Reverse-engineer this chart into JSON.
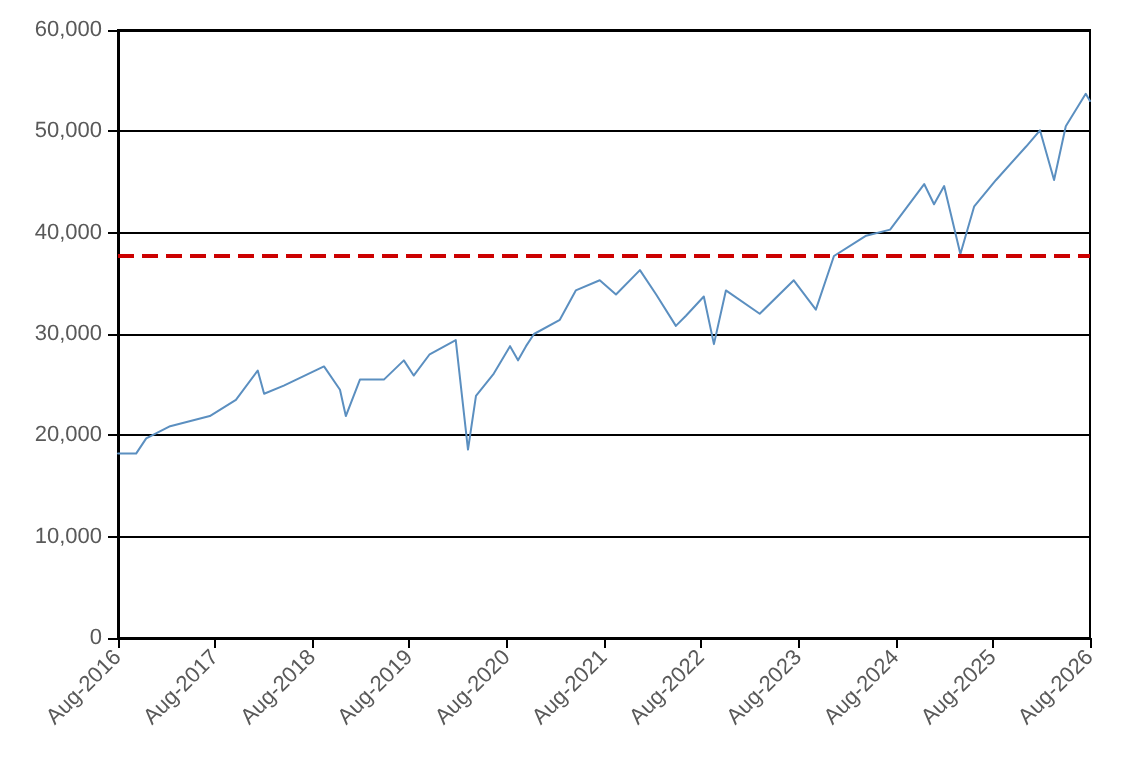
{
  "chart_data": {
    "type": "line",
    "x": [
      "2016-08-01",
      "2016-10-08",
      "2016-11-15",
      "2017-02-13",
      "2017-07-12",
      "2017-10-18",
      "2018-01-08",
      "2018-02-01",
      "2018-04-16",
      "2018-09-14",
      "2018-11-13",
      "2018-12-05",
      "2019-01-27",
      "2019-04-27",
      "2019-07-11",
      "2019-08-17",
      "2019-10-16",
      "2020-01-22",
      "2020-03-08",
      "2020-04-07",
      "2020-06-13",
      "2020-08-13",
      "2020-09-12",
      "2020-10-12",
      "2020-11-11",
      "2021-02-16",
      "2021-04-17",
      "2021-07-16",
      "2021-09-15",
      "2021-12-14",
      "2022-02-13",
      "2022-04-28",
      "2022-06-05",
      "2022-08-11",
      "2022-09-18",
      "2022-11-02",
      "2023-03-09",
      "2023-07-15",
      "2023-10-06",
      "2023-12-13",
      "2024-04-12",
      "2024-07-11",
      "2024-11-16",
      "2024-12-23",
      "2025-01-30",
      "2025-04-01",
      "2025-05-23",
      "2025-08-13",
      "2025-12-04",
      "2026-01-25",
      "2026-03-19",
      "2026-05-02",
      "2026-07-16",
      "2026-08-01"
    ],
    "series": [
      {
        "color": "#5b8fc0",
        "values": [
          18200,
          18200,
          19700,
          20900,
          21900,
          23500,
          26400,
          24100,
          24900,
          26800,
          24500,
          21900,
          25500,
          25500,
          27400,
          25900,
          28000,
          29400,
          18600,
          23900,
          26100,
          28800,
          27400,
          28800,
          30000,
          31400,
          34300,
          35300,
          33900,
          36300,
          33900,
          30800,
          31800,
          33700,
          29000,
          34300,
          32000,
          35300,
          32400,
          37700,
          39700,
          40300,
          44800,
          42800,
          44600,
          37900,
          42600,
          45200,
          48500,
          50100,
          45200,
          50500,
          53700,
          53000
        ]
      }
    ],
    "xlim": [
      "2016-08-01",
      "2026-08-01"
    ],
    "xticks": [
      {
        "value": "2016-08-01",
        "label": "Aug-2016"
      },
      {
        "value": "2017-08-01",
        "label": "Aug-2017"
      },
      {
        "value": "2018-08-01",
        "label": "Aug-2018"
      },
      {
        "value": "2019-08-01",
        "label": "Aug-2019"
      },
      {
        "value": "2020-08-01",
        "label": "Aug-2020"
      },
      {
        "value": "2021-08-01",
        "label": "Aug-2021"
      },
      {
        "value": "2022-08-01",
        "label": "Aug-2022"
      },
      {
        "value": "2023-08-01",
        "label": "Aug-2023"
      },
      {
        "value": "2024-08-01",
        "label": "Aug-2024"
      },
      {
        "value": "2025-08-01",
        "label": "Aug-2025"
      },
      {
        "value": "2026-08-01",
        "label": "Aug-2026"
      }
    ],
    "ylim": [
      0,
      60000
    ],
    "yticks": [
      {
        "value": 0,
        "label": "0"
      },
      {
        "value": 10000,
        "label": "10,000"
      },
      {
        "value": 20000,
        "label": "20,000"
      },
      {
        "value": 30000,
        "label": "30,000"
      },
      {
        "value": 40000,
        "label": "40,000"
      },
      {
        "value": 50000,
        "label": "50,000"
      },
      {
        "value": 60000,
        "label": "60,000"
      }
    ],
    "ref_lines": [
      {
        "axis": "y",
        "value": 37700,
        "color": "#cc0000",
        "line_style": "dashed"
      }
    ],
    "grid": "y",
    "marker": "none",
    "line_style": "solid"
  }
}
